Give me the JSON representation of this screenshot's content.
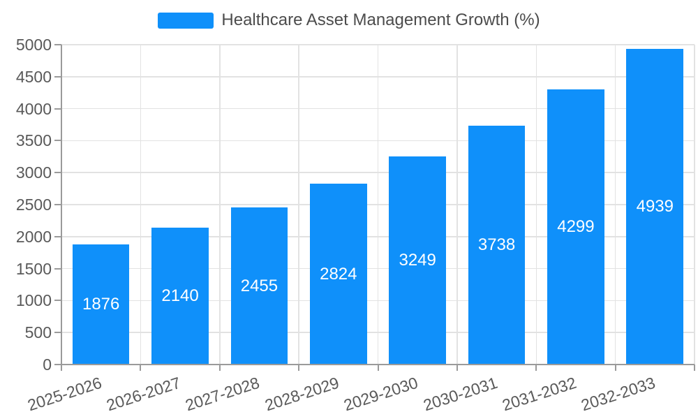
{
  "chart_data": {
    "type": "bar",
    "title": "Healthcare Asset Management Growth (%)",
    "legend_entries": [
      "Healthcare Asset Management Growth (%)"
    ],
    "legend_position": "top-center",
    "categories": [
      "2025-2026",
      "2026-2027",
      "2027-2028",
      "2028-2029",
      "2029-2030",
      "2030-2031",
      "2031-2032",
      "2032-2033"
    ],
    "series": [
      {
        "name": "Healthcare Asset Management Growth (%)",
        "values": [
          1876,
          2140,
          2455,
          2824,
          3249,
          3738,
          4299,
          4939
        ]
      }
    ],
    "bar_value_labels": [
      "1876",
      "2140",
      "2455",
      "2824",
      "3249",
      "3738",
      "4299",
      "4939"
    ],
    "xlabel": "",
    "ylabel": "",
    "ylim": [
      0,
      5000
    ],
    "ytick_step": 500,
    "yticks": [
      0,
      500,
      1000,
      1500,
      2000,
      2500,
      3000,
      3500,
      4000,
      4500,
      5000
    ],
    "grid": true,
    "x_gridlines_at_boundaries": true,
    "x_label_rotation_deg": -18,
    "bar_width_fraction": 0.72,
    "colors": {
      "bar": "#0f90fa",
      "bar_label_text": "#ffffff",
      "grid_line": "#e2e2e2",
      "axis_line": "#9a9a9a",
      "tick_label_text": "#595959",
      "legend_text": "#4c4c4c",
      "background": "#ffffff"
    }
  }
}
